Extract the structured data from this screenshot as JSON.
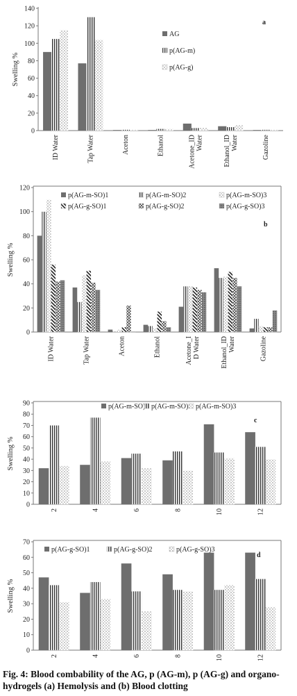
{
  "caption": "Fig. 4: Blood combability of the AG, p (AG-m), p (AG-g) and organo-hydrogels (a) Hemolysis and (b) Blood clotting",
  "chart_data": [
    {
      "type": "bar",
      "panel_label": "a",
      "ylabel": "Swelling %",
      "ylim": [
        0,
        140
      ],
      "yticks": [
        0,
        20,
        40,
        60,
        80,
        100,
        120,
        140
      ],
      "categories": [
        "ID Water",
        "Tap Water",
        "Aceton",
        "Ethanol",
        "Acetone_ID\nWater",
        "Ethanol_ID\nWater",
        "Gazoline"
      ],
      "series": [
        {
          "name": "AG",
          "values": [
            90,
            77,
            0.5,
            0.5,
            8,
            5,
            0.5
          ],
          "pattern": "solid"
        },
        {
          "name": "p(AG-m)",
          "values": [
            105,
            130,
            1,
            2,
            3,
            4,
            1
          ],
          "pattern": "vstripe"
        },
        {
          "name": "p(AG-g)",
          "values": [
            115,
            104,
            1,
            2,
            3,
            6,
            1
          ],
          "pattern": "dots"
        }
      ],
      "legend_position": "center-right"
    },
    {
      "type": "bar",
      "panel_label": "b",
      "ylabel": "Swelling %",
      "ylim": [
        0,
        120
      ],
      "yticks": [
        0,
        20,
        40,
        60,
        80,
        100,
        120
      ],
      "categories": [
        "ID Water",
        "Tap Water",
        "Aceton",
        "Ethanol",
        "Acetone_I\nD Water",
        "Ethanol_ID\nWater",
        "Gazoline"
      ],
      "series": [
        {
          "name": "p(AG-m-SO)1",
          "values": [
            80,
            37,
            2,
            6,
            21,
            53,
            3
          ],
          "pattern": "solid"
        },
        {
          "name": "p(AG-m-SO)2",
          "values": [
            100,
            25,
            0,
            5,
            38,
            45,
            11
          ],
          "pattern": "vstripe"
        },
        {
          "name": "p(AG-m-SO)3",
          "values": [
            110,
            47,
            2,
            3,
            38,
            46,
            5
          ],
          "pattern": "dots"
        },
        {
          "name": "p(AG-g-SO)1",
          "values": [
            56,
            51,
            4,
            17,
            37,
            50,
            4
          ],
          "pattern": "diag"
        },
        {
          "name": "p(AG-g-SO)2",
          "values": [
            42,
            41,
            22,
            9,
            35,
            45,
            4
          ],
          "pattern": "cross"
        },
        {
          "name": "p(AG-g-SO)3",
          "values": [
            43,
            35,
            0,
            4,
            33,
            38,
            18
          ],
          "pattern": "grid"
        }
      ],
      "legend_position": "top"
    },
    {
      "type": "bar",
      "panel_label": "c",
      "ylabel": "Swelling %",
      "ylim": [
        0,
        90
      ],
      "yticks": [
        0,
        10,
        20,
        30,
        40,
        50,
        60,
        70,
        80,
        90
      ],
      "categories": [
        "2",
        "4",
        "6",
        "8",
        "10",
        "12"
      ],
      "series": [
        {
          "name": "p(AG-m-SO)1",
          "values": [
            32,
            35,
            41,
            39,
            71,
            64
          ],
          "pattern": "solid"
        },
        {
          "name": "p(AG-m-SO)2",
          "values": [
            70,
            77,
            45,
            47,
            46,
            51
          ],
          "pattern": "vstripe"
        },
        {
          "name": "p(AG-m-SO)3",
          "values": [
            34,
            38,
            32,
            30,
            41,
            40
          ],
          "pattern": "dots"
        }
      ],
      "legend_position": "top"
    },
    {
      "type": "bar",
      "panel_label": "d",
      "ylabel": "Swelling %",
      "ylim": [
        0,
        70
      ],
      "yticks": [
        0,
        10,
        20,
        30,
        40,
        50,
        60,
        70
      ],
      "categories": [
        "2",
        "4",
        "6",
        "8",
        "10",
        "12"
      ],
      "series": [
        {
          "name": "p(AG-g-SO)1",
          "values": [
            47,
            37,
            56,
            49,
            63,
            63
          ],
          "pattern": "solid"
        },
        {
          "name": "p(AG-g-SO)2",
          "values": [
            42,
            44,
            38,
            39,
            39,
            46
          ],
          "pattern": "vstripe"
        },
        {
          "name": "p(AG-g-SO)3",
          "values": [
            31,
            33,
            25,
            38,
            42,
            28
          ],
          "pattern": "dots"
        }
      ],
      "legend_position": "top"
    }
  ]
}
